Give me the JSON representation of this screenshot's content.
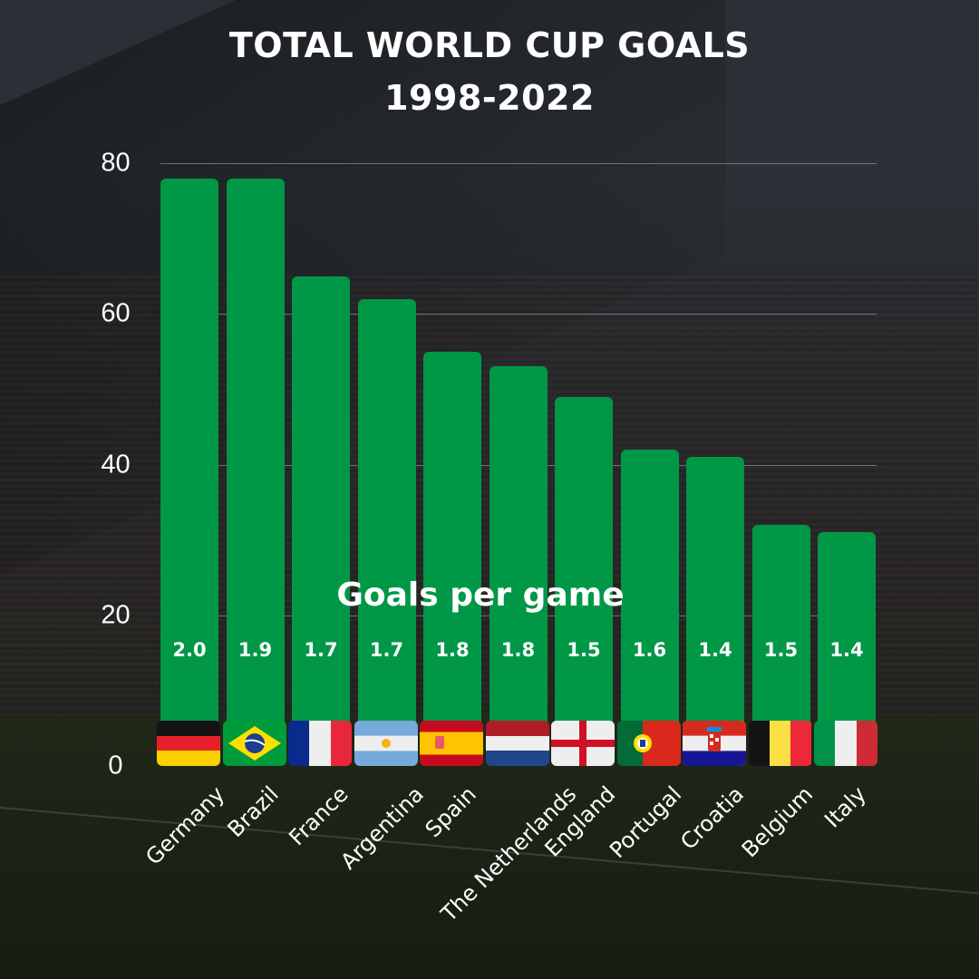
{
  "title": {
    "line1": "TOTAL WORLD CUP GOALS",
    "line2": "1998-2022"
  },
  "annotation": "Goals per game",
  "colors": {
    "bar": "#009747",
    "text": "#ffffff",
    "gridline": "#ffffff"
  },
  "y_ticks": [
    "80",
    "60",
    "40",
    "20",
    "0"
  ],
  "countries": [
    {
      "name": "Germany",
      "goals": 78,
      "per_game": "2.0",
      "flag": "germany-flag"
    },
    {
      "name": "Brazil",
      "goals": 78,
      "per_game": "1.9",
      "flag": "brazil-flag"
    },
    {
      "name": "France",
      "goals": 65,
      "per_game": "1.7",
      "flag": "france-flag"
    },
    {
      "name": "Argentina",
      "goals": 62,
      "per_game": "1.7",
      "flag": "argentina-flag"
    },
    {
      "name": "Spain",
      "goals": 55,
      "per_game": "1.8",
      "flag": "spain-flag"
    },
    {
      "name": "The Netherlands",
      "goals": 53,
      "per_game": "1.8",
      "flag": "netherlands-flag"
    },
    {
      "name": "England",
      "goals": 49,
      "per_game": "1.5",
      "flag": "england-flag"
    },
    {
      "name": "Portugal",
      "goals": 42,
      "per_game": "1.6",
      "flag": "portugal-flag"
    },
    {
      "name": "Croatia",
      "goals": 41,
      "per_game": "1.4",
      "flag": "croatia-flag"
    },
    {
      "name": "Belgium",
      "goals": 32,
      "per_game": "1.5",
      "flag": "belgium-flag"
    },
    {
      "name": "Italy",
      "goals": 31,
      "per_game": "1.4",
      "flag": "italy-flag"
    }
  ],
  "chart_data": {
    "type": "bar",
    "title": "TOTAL WORLD CUP GOALS 1998-2022",
    "categories": [
      "Germany",
      "Brazil",
      "France",
      "Argentina",
      "Spain",
      "The Netherlands",
      "England",
      "Portugal",
      "Croatia",
      "Belgium",
      "Italy"
    ],
    "series": [
      {
        "name": "Total goals",
        "values": [
          78,
          78,
          65,
          62,
          55,
          53,
          49,
          42,
          41,
          32,
          31
        ]
      },
      {
        "name": "Goals per game",
        "values": [
          2.0,
          1.9,
          1.7,
          1.7,
          1.8,
          1.8,
          1.5,
          1.6,
          1.4,
          1.5,
          1.4
        ]
      }
    ],
    "xlabel": "",
    "ylabel": "",
    "ylim": [
      0,
      80
    ],
    "yticks": [
      0,
      20,
      40,
      60,
      80
    ],
    "grid": true,
    "annotations": [
      "Goals per game"
    ],
    "legend": null
  }
}
